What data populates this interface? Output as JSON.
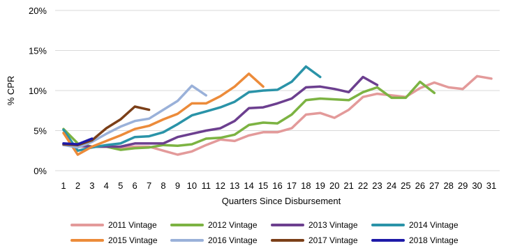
{
  "chart_data": {
    "type": "line",
    "xlabel": "Quarters Since Disbursement",
    "ylabel": "% CPR",
    "xlim": [
      1,
      31
    ],
    "ylim": [
      0,
      20
    ],
    "x_ticks": [
      1,
      2,
      3,
      4,
      5,
      6,
      7,
      8,
      9,
      10,
      11,
      12,
      13,
      14,
      15,
      16,
      17,
      18,
      19,
      20,
      21,
      22,
      23,
      24,
      25,
      26,
      27,
      28,
      29,
      30,
      31
    ],
    "y_ticks": [
      0,
      5,
      10,
      15,
      20
    ],
    "y_tick_labels": [
      "0%",
      "5%",
      "10%",
      "15%",
      "20%"
    ],
    "grid": "horizontal",
    "legend_position": "bottom",
    "series": [
      {
        "name": "2011 Vintage",
        "color": "#e39a9a",
        "x": [
          1,
          2,
          3,
          4,
          5,
          6,
          7,
          8,
          9,
          10,
          11,
          12,
          13,
          14,
          15,
          16,
          17,
          18,
          19,
          20,
          21,
          22,
          23,
          24,
          25,
          26,
          27,
          28,
          29,
          30,
          31
        ],
        "values": [
          3.3,
          3.0,
          3.0,
          3.0,
          2.9,
          3.0,
          3.0,
          2.5,
          2.0,
          2.4,
          3.2,
          3.9,
          3.7,
          4.4,
          4.8,
          4.8,
          5.3,
          7.0,
          7.2,
          6.6,
          7.6,
          9.2,
          9.6,
          9.4,
          9.2,
          10.3,
          11.0,
          10.4,
          10.2,
          11.8,
          11.5
        ]
      },
      {
        "name": "2012 Vintage",
        "color": "#7cb342",
        "x": [
          1,
          2,
          3,
          4,
          5,
          6,
          7,
          8,
          9,
          10,
          11,
          12,
          13,
          14,
          15,
          16,
          17,
          18,
          19,
          20,
          21,
          22,
          23,
          24,
          25,
          26,
          27
        ],
        "values": [
          5.2,
          3.4,
          3.0,
          3.0,
          2.6,
          2.8,
          2.9,
          3.2,
          3.1,
          3.3,
          4.0,
          4.1,
          4.5,
          5.7,
          6.0,
          5.9,
          7.0,
          8.8,
          9.0,
          8.9,
          8.8,
          9.8,
          10.4,
          9.1,
          9.1,
          11.1,
          9.7
        ]
      },
      {
        "name": "2013 Vintage",
        "color": "#6c3f8f",
        "x": [
          1,
          2,
          3,
          4,
          5,
          6,
          7,
          8,
          9,
          10,
          11,
          12,
          13,
          14,
          15,
          16,
          17,
          18,
          19,
          20,
          21,
          22,
          23
        ],
        "values": [
          3.2,
          3.1,
          3.0,
          3.0,
          3.0,
          3.4,
          3.4,
          3.4,
          4.2,
          4.6,
          5.0,
          5.3,
          6.2,
          7.8,
          7.9,
          8.4,
          9.0,
          10.4,
          10.5,
          10.2,
          9.8,
          11.7,
          10.7
        ]
      },
      {
        "name": "2014 Vintage",
        "color": "#2a93a8",
        "x": [
          1,
          2,
          3,
          4,
          5,
          6,
          7,
          8,
          9,
          10,
          11,
          12,
          13,
          14,
          15,
          16,
          17,
          18,
          19
        ],
        "values": [
          5.1,
          2.5,
          2.9,
          3.2,
          3.4,
          4.2,
          4.3,
          4.8,
          5.8,
          6.9,
          7.4,
          7.9,
          8.6,
          9.8,
          10.0,
          10.1,
          11.1,
          13.0,
          11.7
        ]
      },
      {
        "name": "2015 Vintage",
        "color": "#ec8b3a",
        "x": [
          1,
          2,
          3,
          4,
          5,
          6,
          7,
          8,
          9,
          10,
          11,
          12,
          13,
          14,
          15
        ],
        "values": [
          4.7,
          2.0,
          3.0,
          3.7,
          4.4,
          5.2,
          5.6,
          6.4,
          7.1,
          8.4,
          8.4,
          9.3,
          10.5,
          12.1,
          10.5
        ]
      },
      {
        "name": "2016 Vintage",
        "color": "#9ab1d9",
        "x": [
          1,
          2,
          3,
          4,
          5,
          6,
          7,
          8,
          9,
          10,
          11
        ],
        "values": [
          3.2,
          2.9,
          3.6,
          4.6,
          5.5,
          6.2,
          6.5,
          7.6,
          8.7,
          10.6,
          9.4
        ]
      },
      {
        "name": "2017 Vintage",
        "color": "#7b3f18",
        "x": [
          1,
          2,
          3,
          4,
          5,
          6,
          7
        ],
        "values": [
          3.3,
          3.2,
          3.8,
          5.3,
          6.4,
          8.0,
          7.6
        ]
      },
      {
        "name": "2018 Vintage",
        "color": "#1e1aa8",
        "x": [
          1,
          2,
          3
        ],
        "values": [
          3.4,
          3.3,
          4.0
        ]
      }
    ]
  }
}
